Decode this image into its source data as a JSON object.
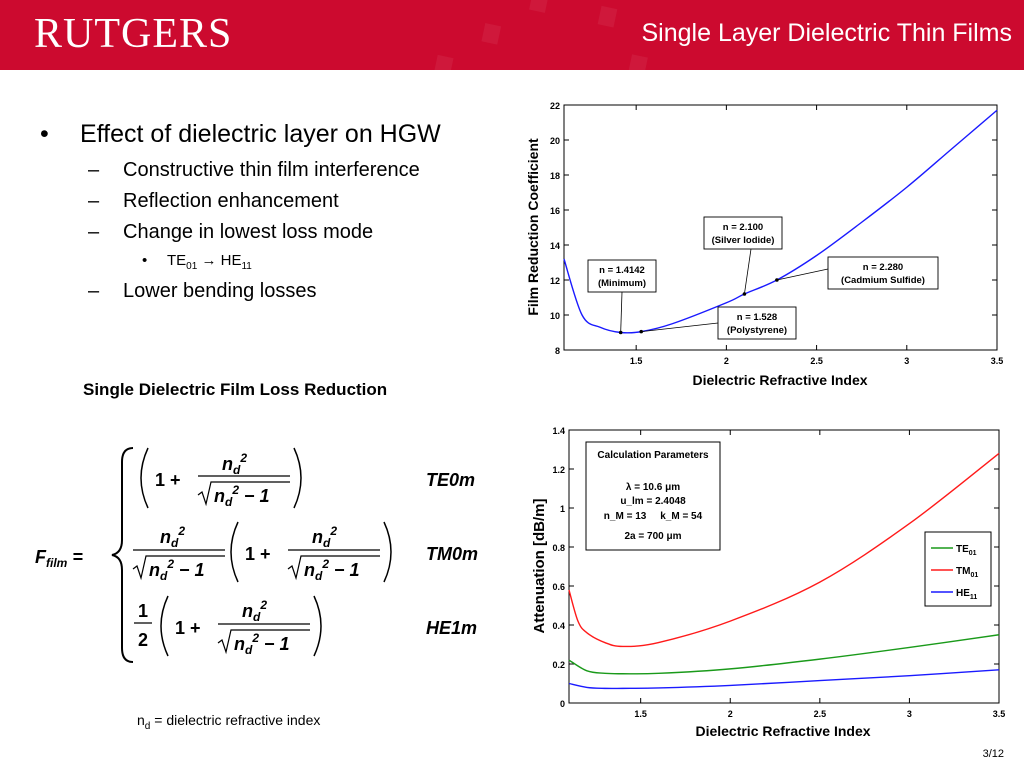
{
  "header": {
    "logo_text": "RUTGERS",
    "title": "Single Layer Dielectric Thin Films",
    "colors": {
      "header_bg": "#cc0a2f",
      "header_text": "#ffffff"
    }
  },
  "bullets": {
    "main": {
      "marker": "•",
      "text": "Effect of dielectric layer on HGW"
    },
    "sub": [
      {
        "marker": "–",
        "text": "Constructive thin film interference"
      },
      {
        "marker": "–",
        "text": "Reflection enhancement"
      },
      {
        "marker": "–",
        "text": "Change in lowest loss mode"
      },
      {
        "marker": "–",
        "text": "Lower bending losses"
      }
    ],
    "subsub": {
      "marker": "•",
      "from": "TE",
      "from_sub": "01",
      "arrow": "→",
      "to": "HE",
      "to_sub": "11"
    }
  },
  "formula": {
    "title": "Single Dielectric Film Loss Reduction",
    "lhs": "F_film =",
    "modes": [
      "TE0m",
      "TM0m",
      "HE1m"
    ]
  },
  "footnote": {
    "symbol": "n",
    "sub": "d",
    "text": " = dielectric refractive index"
  },
  "page_number": "3/12",
  "chart_data": [
    {
      "type": "line",
      "xlabel": "Dielectric Refractive Index",
      "ylabel": "Film Reduction Coefficient",
      "xlim": [
        1.1,
        3.5
      ],
      "ylim": [
        8,
        22
      ],
      "xticks": [
        "1.5",
        "2",
        "2.5",
        "3",
        "3.5"
      ],
      "yticks": [
        "8",
        "10",
        "12",
        "14",
        "16",
        "18",
        "20",
        "22"
      ],
      "color": "#1a1aff",
      "series": [
        {
          "x": [
            1.1,
            1.2,
            1.3,
            1.4142,
            1.528,
            1.7,
            2.0,
            2.1,
            2.28,
            2.5,
            2.75,
            3.0,
            3.25,
            3.5
          ],
          "values": [
            13.2,
            10.0,
            9.3,
            9.0,
            9.05,
            9.5,
            10.7,
            11.2,
            12.0,
            13.4,
            15.3,
            17.3,
            19.5,
            21.7
          ]
        }
      ],
      "annotations": [
        {
          "line1": "n = 1.4142",
          "line2": "(Minimum)",
          "x": 1.4142,
          "y": 9.0
        },
        {
          "line1": "n = 1.528",
          "line2": "(Polystyrene)",
          "x": 1.528,
          "y": 9.05
        },
        {
          "line1": "n = 2.100",
          "line2": "(Silver Iodide)",
          "x": 2.1,
          "y": 11.2
        },
        {
          "line1": "n = 2.280",
          "line2": "(Cadmium Sulfide)",
          "x": 2.28,
          "y": 12.0
        }
      ]
    },
    {
      "type": "line",
      "xlabel": "Dielectric Refractive Index",
      "ylabel": "Attenuation [dB/m]",
      "xlim": [
        1.1,
        3.5
      ],
      "ylim": [
        0,
        1.4
      ],
      "xticks": [
        "1.5",
        "2",
        "2.5",
        "3",
        "3.5"
      ],
      "yticks": [
        "0",
        "0.2",
        "0.4",
        "0.6",
        "0.8",
        "1",
        "1.2",
        "1.4"
      ],
      "legend_position": "right",
      "params": {
        "title": "Calculation Parameters",
        "lines": [
          "λ = 10.6 μm",
          "u_lm = 2.4048",
          "n_M = 13     k_M = 54",
          "2a = 700 μm"
        ]
      },
      "series": [
        {
          "name": "TE",
          "name_sub": "01",
          "color": "#1a9a1a",
          "x": [
            1.1,
            1.2,
            1.3,
            1.4,
            1.6,
            2.0,
            2.5,
            3.0,
            3.5
          ],
          "values": [
            0.22,
            0.165,
            0.152,
            0.15,
            0.152,
            0.175,
            0.225,
            0.285,
            0.35
          ]
        },
        {
          "name": "TM",
          "name_sub": "01",
          "color": "#ff1a1a",
          "x": [
            1.1,
            1.15,
            1.2,
            1.3,
            1.4,
            1.6,
            2.0,
            2.5,
            3.0,
            3.5
          ],
          "values": [
            0.58,
            0.42,
            0.36,
            0.31,
            0.29,
            0.31,
            0.42,
            0.62,
            0.92,
            1.28
          ]
        },
        {
          "name": "HE",
          "name_sub": "11",
          "color": "#1a1aff",
          "x": [
            1.1,
            1.2,
            1.3,
            1.4,
            1.6,
            2.0,
            2.5,
            3.0,
            3.5
          ],
          "values": [
            0.1,
            0.08,
            0.075,
            0.075,
            0.077,
            0.09,
            0.115,
            0.14,
            0.17
          ]
        }
      ]
    }
  ]
}
